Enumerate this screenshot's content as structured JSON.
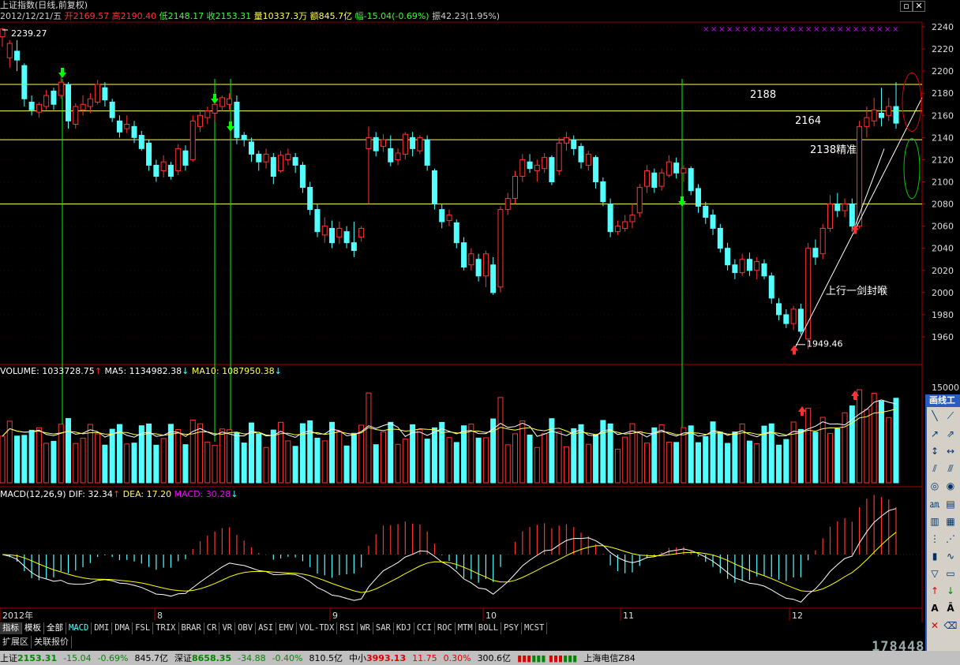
{
  "title": "上证指数(日线,前复权)",
  "quote": {
    "date": "2012/12/21/五",
    "open": "开2169.57",
    "high": "高2190.40",
    "low": "低2148.17",
    "close": "收2153.31",
    "volume": "量10337.3万",
    "amount": "额845.7亿",
    "change": "幅-15.04(-0.69%)",
    "amplitude": "振42.23(1.95%)"
  },
  "indicators": {
    "volume_label": "VOLUME: 1033728.75",
    "ma5_label": "MA5: 1134982.38",
    "ma10_label": "MA10: 1087950.38",
    "macd_label": "MACD(12,26,9)",
    "dif_label": "DIF: 32.34",
    "dea_label": "DEA: 17.20",
    "macd_value_label": "MACD: 30.28"
  },
  "annotations": {
    "high_label": "2239.27",
    "low_label": "1949.46",
    "level_2188": "2188",
    "level_2164": "2164",
    "level_2138": "2138精准",
    "uptrend_note": "上行一剑封喉"
  },
  "price_axis": [
    "2240",
    "2220",
    "2200",
    "2180",
    "2160",
    "2140",
    "2120",
    "2100",
    "2080",
    "2060",
    "2040",
    "2020",
    "2000",
    "1980",
    "1960"
  ],
  "volume_axis": [
    "15000"
  ],
  "date_axis": [
    "2012年",
    "8",
    "9",
    "10",
    "11",
    "12"
  ],
  "tabs": [
    "指标",
    "模板",
    "全部",
    "MACD",
    "DMI",
    "DMA",
    "FSL",
    "TRIX",
    "BRAR",
    "CR",
    "VR",
    "OBV",
    "ASI",
    "EMV",
    "VOL-TDX",
    "RSI",
    "WR",
    "SAR",
    "KDJ",
    "CCI",
    "ROC",
    "MTM",
    "BOLL",
    "PSY",
    "MCST"
  ],
  "extra_tabs": [
    "扩展区",
    "关联报价"
  ],
  "status_bar": {
    "sh_name": "上证",
    "sh_value": "2153.31",
    "sh_change": "-15.04",
    "sh_pct": "-0.69%",
    "sh_amount": "845.7亿",
    "sz_name": "深证",
    "sz_value": "8658.35",
    "sz_change": "-34.88",
    "sz_pct": "-0.40%",
    "sz_amount": "810.5亿",
    "zx_name": "中小",
    "zx_value": "3993.13",
    "zx_change": "11.75",
    "zx_pct": "0.30%",
    "zx_amount": "300.6亿",
    "server": "上海电信Z84"
  },
  "toolbox_title": "画线工",
  "watermark": "178448.com",
  "colors": {
    "up": "#ff3232",
    "down": "#54ffff",
    "guide": "#ffff54",
    "signal": "#00ff00",
    "macd_dif": "#ffffff",
    "macd_dea": "#ffff00"
  },
  "chart_data": {
    "type": "candlestick",
    "ylim": [
      1940,
      2250
    ],
    "levels": [
      2188,
      2164,
      2138,
      2080
    ],
    "candles": [
      [
        2231,
        2238,
        2222,
        2239
      ],
      [
        2212,
        2225,
        2203,
        2228
      ],
      [
        2218,
        2210,
        2200,
        2228
      ],
      [
        2205,
        2175,
        2168,
        2207
      ],
      [
        2172,
        2165,
        2160,
        2178
      ],
      [
        2163,
        2170,
        2158,
        2172
      ],
      [
        2168,
        2178,
        2165,
        2183
      ],
      [
        2182,
        2170,
        2165,
        2185
      ],
      [
        2178,
        2190,
        2175,
        2195
      ],
      [
        2188,
        2155,
        2148,
        2190
      ],
      [
        2152,
        2168,
        2148,
        2171
      ],
      [
        2165,
        2170,
        2160,
        2178
      ],
      [
        2168,
        2175,
        2162,
        2180
      ],
      [
        2172,
        2188,
        2170,
        2192
      ],
      [
        2185,
        2174,
        2168,
        2190
      ],
      [
        2172,
        2158,
        2154,
        2175
      ],
      [
        2155,
        2145,
        2140,
        2160
      ],
      [
        2148,
        2152,
        2144,
        2160
      ],
      [
        2150,
        2140,
        2135,
        2155
      ],
      [
        2142,
        2130,
        2128,
        2146
      ],
      [
        2135,
        2115,
        2110,
        2138
      ],
      [
        2115,
        2105,
        2100,
        2120
      ],
      [
        2110,
        2118,
        2104,
        2124
      ],
      [
        2115,
        2105,
        2102,
        2118
      ],
      [
        2110,
        2130,
        2106,
        2134
      ],
      [
        2128,
        2115,
        2110,
        2133
      ],
      [
        2120,
        2155,
        2118,
        2160
      ],
      [
        2150,
        2160,
        2145,
        2165
      ],
      [
        2158,
        2164,
        2152,
        2168
      ],
      [
        2162,
        2170,
        2155,
        2172
      ],
      [
        2168,
        2176,
        2164,
        2178
      ],
      [
        2170,
        2175,
        2165,
        2180
      ],
      [
        2172,
        2140,
        2134,
        2178
      ],
      [
        2142,
        2138,
        2132,
        2145
      ],
      [
        2136,
        2125,
        2118,
        2140
      ],
      [
        2125,
        2118,
        2110,
        2128
      ],
      [
        2118,
        2125,
        2112,
        2130
      ],
      [
        2122,
        2105,
        2098,
        2126
      ],
      [
        2110,
        2124,
        2108,
        2128
      ],
      [
        2120,
        2125,
        2115,
        2130
      ],
      [
        2122,
        2115,
        2108,
        2126
      ],
      [
        2115,
        2095,
        2090,
        2118
      ],
      [
        2095,
        2075,
        2070,
        2100
      ],
      [
        2075,
        2055,
        2050,
        2080
      ],
      [
        2052,
        2060,
        2045,
        2068
      ],
      [
        2058,
        2045,
        2040,
        2065
      ],
      [
        2050,
        2058,
        2044,
        2064
      ],
      [
        2055,
        2045,
        2040,
        2060
      ],
      [
        2045,
        2038,
        2032,
        2064
      ],
      [
        2050,
        2058,
        2046,
        2060
      ],
      [
        2130,
        2140,
        2080,
        2150
      ],
      [
        2140,
        2128,
        2123,
        2145
      ],
      [
        2132,
        2138,
        2127,
        2143
      ],
      [
        2130,
        2118,
        2114,
        2142
      ],
      [
        2120,
        2126,
        2115,
        2130
      ],
      [
        2125,
        2143,
        2120,
        2145
      ],
      [
        2140,
        2130,
        2123,
        2145
      ],
      [
        2128,
        2140,
        2125,
        2142
      ],
      [
        2138,
        2115,
        2110,
        2142
      ],
      [
        2110,
        2080,
        2075,
        2112
      ],
      [
        2075,
        2064,
        2058,
        2080
      ],
      [
        2065,
        2070,
        2060,
        2075
      ],
      [
        2063,
        2045,
        2040,
        2066
      ],
      [
        2045,
        2023,
        2020,
        2050
      ],
      [
        2025,
        2035,
        2020,
        2040
      ],
      [
        2030,
        2015,
        2010,
        2035
      ],
      [
        2015,
        2035,
        2005,
        2038
      ],
      [
        2025,
        2000,
        1998,
        2032
      ],
      [
        2005,
        2075,
        2000,
        2078
      ],
      [
        2075,
        2085,
        2070,
        2090
      ],
      [
        2085,
        2105,
        2080,
        2110
      ],
      [
        2105,
        2120,
        2100,
        2125
      ],
      [
        2118,
        2112,
        2108,
        2125
      ],
      [
        2110,
        2115,
        2100,
        2120
      ],
      [
        2112,
        2122,
        2108,
        2126
      ],
      [
        2122,
        2100,
        2097,
        2124
      ],
      [
        2110,
        2135,
        2106,
        2140
      ],
      [
        2135,
        2140,
        2128,
        2145
      ],
      [
        2138,
        2130,
        2124,
        2142
      ],
      [
        2132,
        2118,
        2112,
        2135
      ],
      [
        2115,
        2125,
        2110,
        2128
      ],
      [
        2122,
        2100,
        2094,
        2124
      ],
      [
        2100,
        2082,
        2078,
        2104
      ],
      [
        2080,
        2055,
        2050,
        2085
      ],
      [
        2055,
        2060,
        2052,
        2065
      ],
      [
        2058,
        2064,
        2055,
        2070
      ],
      [
        2064,
        2070,
        2058,
        2080
      ],
      [
        2072,
        2095,
        2068,
        2098
      ],
      [
        2096,
        2110,
        2090,
        2115
      ],
      [
        2108,
        2095,
        2090,
        2112
      ],
      [
        2096,
        2108,
        2092,
        2112
      ],
      [
        2106,
        2118,
        2104,
        2124
      ],
      [
        2117,
        2108,
        2103,
        2122
      ],
      [
        2108,
        2112,
        2100,
        2115
      ],
      [
        2112,
        2092,
        2088,
        2114
      ],
      [
        2094,
        2078,
        2072,
        2098
      ],
      [
        2078,
        2068,
        2062,
        2082
      ],
      [
        2070,
        2058,
        2052,
        2075
      ],
      [
        2058,
        2040,
        2036,
        2062
      ],
      [
        2040,
        2025,
        2020,
        2045
      ],
      [
        2025,
        2018,
        2012,
        2030
      ],
      [
        2018,
        2030,
        2015,
        2035
      ],
      [
        2030,
        2020,
        2015,
        2036
      ],
      [
        2020,
        2028,
        2012,
        2032
      ],
      [
        2026,
        2015,
        2012,
        2030
      ],
      [
        2015,
        1995,
        1990,
        2018
      ],
      [
        1990,
        1980,
        1975,
        1995
      ],
      [
        1980,
        1972,
        1968,
        1985
      ],
      [
        1972,
        1985,
        1966,
        1988
      ],
      [
        1985,
        1965,
        1962,
        1990
      ],
      [
        1958,
        2040,
        1949,
        2045
      ],
      [
        2040,
        2032,
        2025,
        2048
      ],
      [
        2035,
        2058,
        2030,
        2062
      ],
      [
        2058,
        2080,
        2055,
        2088
      ],
      [
        2080,
        2074,
        2068,
        2090
      ],
      [
        2074,
        2080,
        2068,
        2085
      ],
      [
        2080,
        2060,
        2055,
        2085
      ],
      [
        2060,
        2150,
        2058,
        2155
      ],
      [
        2150,
        2158,
        2140,
        2168
      ],
      [
        2155,
        2165,
        2150,
        2176
      ],
      [
        2162,
        2158,
        2150,
        2185
      ],
      [
        2160,
        2168,
        2155,
        2176
      ],
      [
        2168,
        2153,
        2148,
        2190
      ]
    ]
  }
}
